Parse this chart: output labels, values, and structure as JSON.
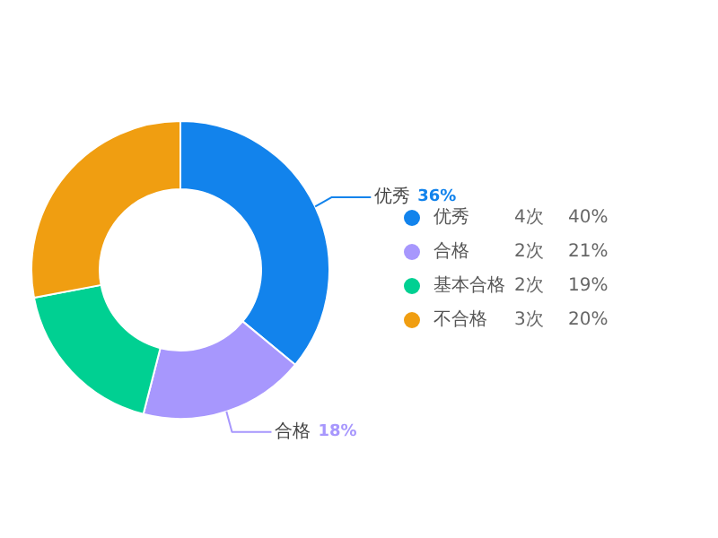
{
  "chart_data": {
    "type": "donut",
    "categories": [
      "优秀",
      "合格",
      "基本合格",
      "不合格"
    ],
    "values": [
      36,
      18,
      18,
      28
    ],
    "colors": [
      "#1283ec",
      "#a797fd",
      "#00d092",
      "#f09e11"
    ],
    "value_labels": [
      "36%",
      "18%",
      null,
      null
    ],
    "legend": "right",
    "annotations": [
      "4次",
      "40%",
      "2次",
      "21%",
      "2次",
      "19%",
      "3次",
      "20%"
    ]
  }
}
